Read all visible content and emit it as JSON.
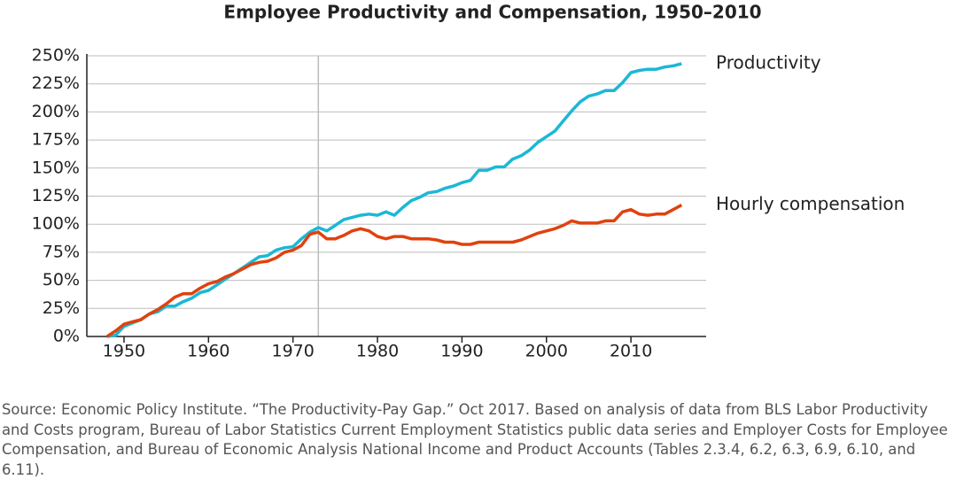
{
  "chart_data": {
    "type": "line",
    "title": "Employee Productivity and Compensation, 1950–2010",
    "x": [
      1948,
      1949,
      1950,
      1951,
      1952,
      1953,
      1954,
      1955,
      1956,
      1957,
      1958,
      1959,
      1960,
      1961,
      1962,
      1963,
      1964,
      1965,
      1966,
      1967,
      1968,
      1969,
      1970,
      1971,
      1972,
      1973,
      1974,
      1975,
      1976,
      1977,
      1978,
      1979,
      1980,
      1981,
      1982,
      1983,
      1984,
      1985,
      1986,
      1987,
      1988,
      1989,
      1990,
      1991,
      1992,
      1993,
      1994,
      1995,
      1996,
      1997,
      1998,
      1999,
      2000,
      2001,
      2002,
      2003,
      2004,
      2005,
      2006,
      2007,
      2008,
      2009,
      2010,
      2011,
      2012,
      2013,
      2014,
      2015,
      2016
    ],
    "series": [
      {
        "name": "Productivity",
        "color": "#1ab8d6",
        "values": [
          0,
          1,
          9,
          12,
          15,
          20,
          22,
          27,
          27,
          31,
          34,
          39,
          41,
          46,
          51,
          56,
          61,
          66,
          71,
          72,
          77,
          79,
          80,
          87,
          93,
          97,
          94,
          99,
          104,
          106,
          108,
          109,
          108,
          111,
          108,
          115,
          121,
          124,
          128,
          129,
          132,
          134,
          137,
          139,
          148,
          148,
          151,
          151,
          158,
          161,
          166,
          173,
          178,
          183,
          192,
          201,
          209,
          214,
          216,
          219,
          219,
          226,
          235,
          237,
          238,
          238,
          240,
          241,
          243
        ]
      },
      {
        "name": "Hourly compensation",
        "color": "#e0420e",
        "values": [
          0,
          5,
          11,
          13,
          15,
          20,
          24,
          29,
          35,
          38,
          38,
          43,
          47,
          49,
          53,
          56,
          60,
          64,
          66,
          67,
          70,
          75,
          77,
          81,
          91,
          93,
          87,
          87,
          90,
          94,
          96,
          94,
          89,
          87,
          89,
          89,
          87,
          87,
          87,
          86,
          84,
          84,
          82,
          82,
          84,
          84,
          84,
          84,
          84,
          86,
          89,
          92,
          94,
          96,
          99,
          103,
          101,
          101,
          101,
          103,
          103,
          111,
          113,
          109,
          108,
          109,
          109,
          113,
          117
        ]
      }
    ],
    "xlim": [
      1945.6,
      2018.9
    ],
    "xticks": [
      1950,
      1960,
      1970,
      1980,
      1990,
      2000,
      2010
    ],
    "ylim": [
      0,
      250
    ],
    "yticks": [
      {
        "value": 0,
        "label": "0%"
      },
      {
        "value": 25,
        "label": "25%"
      },
      {
        "value": 50,
        "label": "50%"
      },
      {
        "value": 75,
        "label": "75%"
      },
      {
        "value": 100,
        "label": "100%"
      },
      {
        "value": 125,
        "label": "125%"
      },
      {
        "value": 150,
        "label": "150%"
      },
      {
        "value": 175,
        "label": "175%"
      },
      {
        "value": 200,
        "label": "200%"
      },
      {
        "value": 225,
        "label": "225%"
      },
      {
        "value": 250,
        "label": "250%"
      }
    ],
    "vline": 1973,
    "grid": true,
    "source": "Source: Economic Policy Institute. “The Productivity-Pay Gap.” Oct 2017. Based on analysis of data from BLS Labor Productivity and Costs program, Bureau of Labor Statistics Current Employment Statistics public data series and Employer Costs for Employee Compensation, and Bureau of Economic Analysis National Income and Product Accounts (Tables 2.3.4, 6.2, 6.3, 6.9, 6.10, and 6.11)."
  }
}
